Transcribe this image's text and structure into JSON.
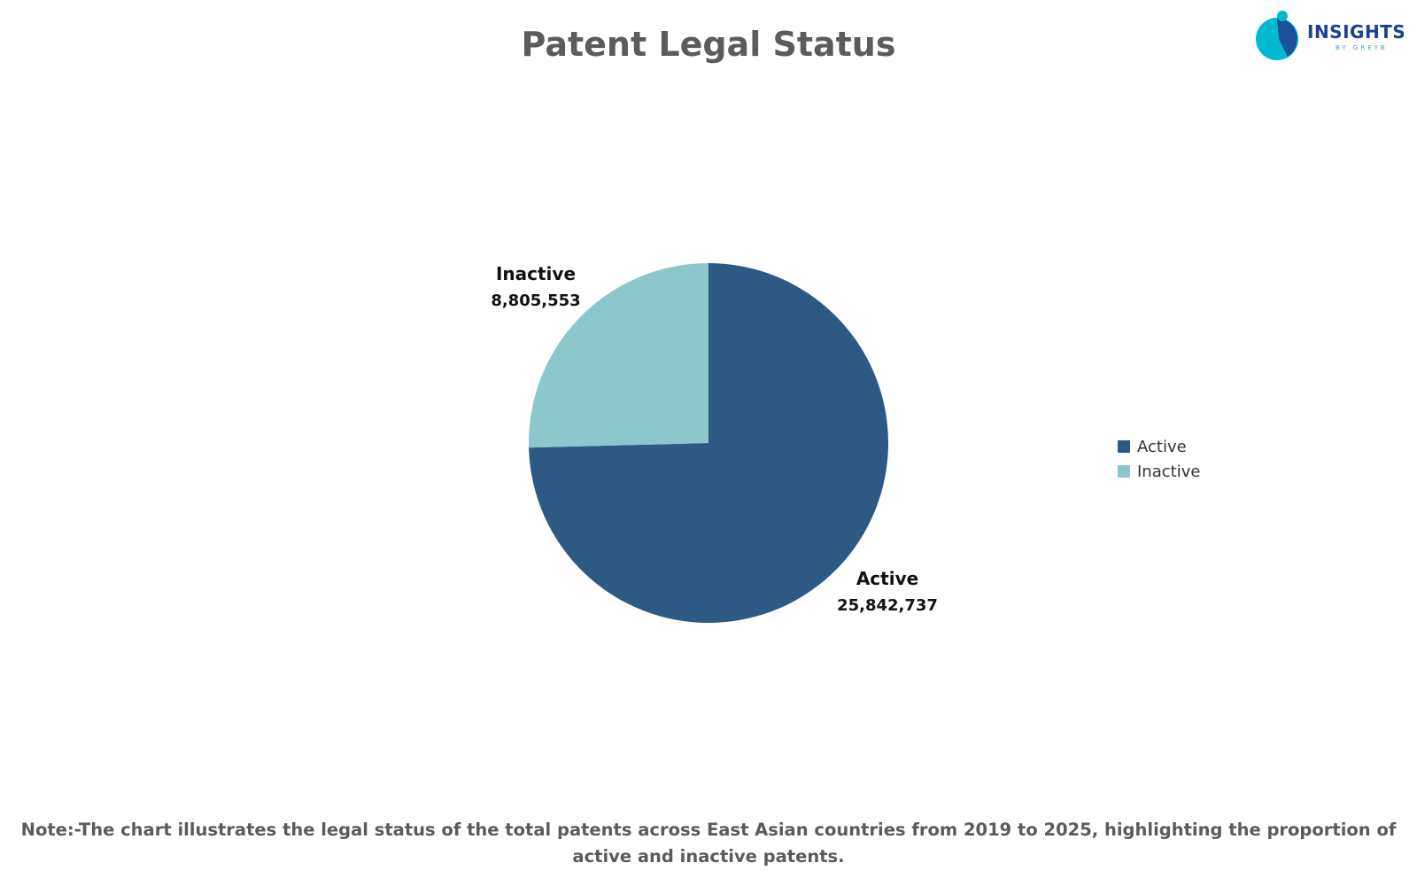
{
  "logo": {
    "text": "INSIGHTS",
    "subtext": "BY GREYB",
    "colors": [
      "#00b9d1",
      "#1f3f8f"
    ]
  },
  "chart_data": {
    "type": "pie",
    "title": "Patent Legal Status",
    "categories": [
      "Active",
      "Inactive"
    ],
    "values": [
      25842737,
      8805553
    ],
    "value_labels": [
      "25,842,737",
      "8,805,553"
    ],
    "colors": [
      "#2d5985",
      "#8cc7cc"
    ],
    "legend": {
      "position": "right",
      "entries": [
        "Active",
        "Inactive"
      ]
    }
  },
  "note": "Note:-The chart illustrates the legal status of the total patents across East Asian countries from 2019 to 2025, highlighting the proportion of active and inactive patents."
}
